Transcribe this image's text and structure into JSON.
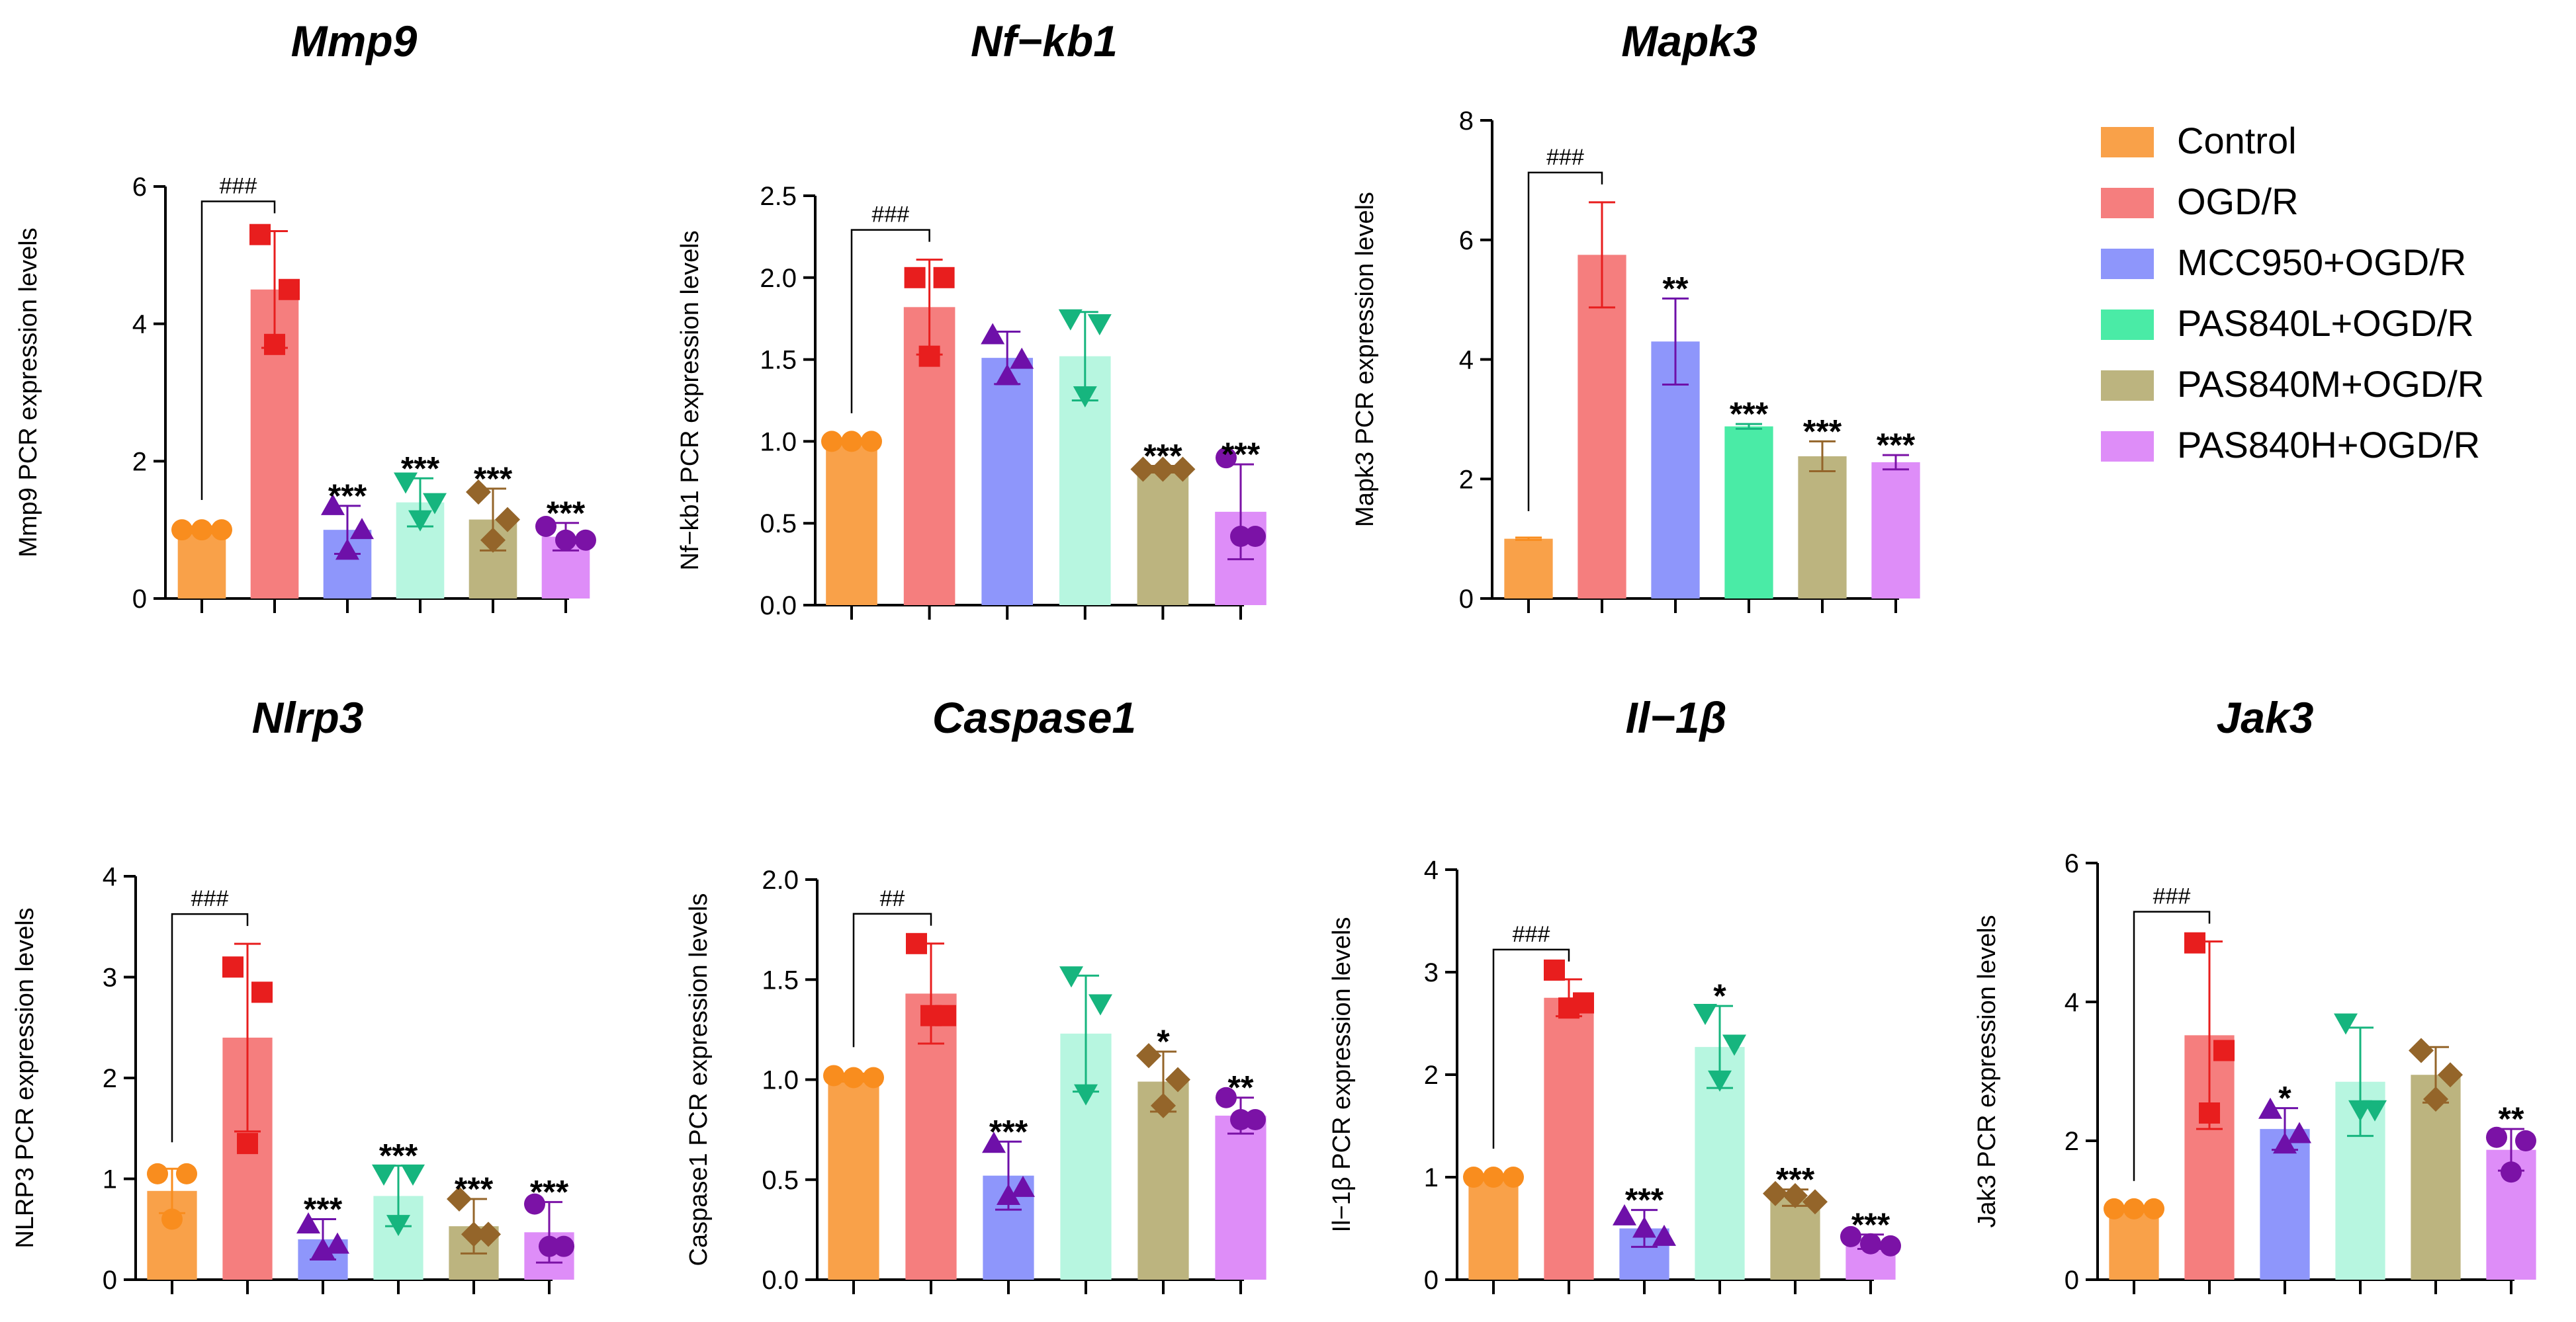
{
  "chart_data": [
    {
      "type": "bar",
      "title": "Mmp9",
      "ylabel": "Mmp9  PCR expression levels",
      "ylim": [
        0,
        6
      ],
      "yticks": [
        "0",
        "2",
        "4",
        "6"
      ],
      "groups": [
        "Control",
        "OGD/R",
        "MCC950+OGD/R",
        "PAS840L+OGD/R",
        "PAS840M+OGD/R",
        "PAS840H+OGD/R"
      ],
      "values": [
        1.0,
        4.5,
        1.0,
        1.4,
        1.15,
        0.9
      ],
      "sd": [
        0.05,
        0.85,
        0.35,
        0.35,
        0.45,
        0.2
      ],
      "points": [
        [
          1.0,
          1.0,
          1.0
        ],
        [
          5.3,
          4.5,
          3.7
        ],
        [
          1.35,
          1.0,
          0.7
        ],
        [
          1.7,
          1.4,
          1.15
        ],
        [
          1.55,
          1.15,
          0.85
        ],
        [
          1.05,
          0.85,
          0.85
        ]
      ],
      "significance": [
        "",
        "",
        "***",
        "***",
        "***",
        "***"
      ],
      "bracket": "###"
    },
    {
      "type": "bar",
      "title": "Nf−kb1",
      "ylabel": "Nf−kb1  PCR expression levels",
      "ylim": [
        0,
        2.5
      ],
      "yticks": [
        "0.0",
        "0.5",
        "1.0",
        "1.5",
        "2.0",
        "2.5"
      ],
      "groups": [
        "Control",
        "OGD/R",
        "MCC950+OGD/R",
        "PAS840L+OGD/R",
        "PAS840M+OGD/R",
        "PAS840H+OGD/R"
      ],
      "values": [
        1.0,
        1.82,
        1.51,
        1.52,
        0.83,
        0.57
      ],
      "sd": [
        0.01,
        0.29,
        0.16,
        0.27,
        0.02,
        0.29
      ],
      "points": [
        [
          1.0,
          1.0,
          1.0
        ],
        [
          2.0,
          2.0,
          1.52
        ],
        [
          1.65,
          1.5,
          1.4
        ],
        [
          1.75,
          1.72,
          1.28
        ],
        [
          0.83,
          0.83,
          0.83
        ],
        [
          0.9,
          0.42,
          0.42
        ]
      ],
      "significance": [
        "",
        "",
        "",
        "",
        "***",
        "***"
      ],
      "bracket": "###"
    },
    {
      "type": "bar",
      "title": "Mapk3",
      "ylabel": "Mapk3  PCR expression levels",
      "ylim": [
        0,
        8
      ],
      "yticks": [
        "0",
        "2",
        "4",
        "6",
        "8"
      ],
      "groups": [
        "Control",
        "OGD/R",
        "MCC950+OGD/R",
        "PAS840L+OGD/R",
        "PAS840M+OGD/R",
        "PAS840H+OGD/R"
      ],
      "values": [
        1.0,
        5.75,
        4.3,
        2.88,
        2.38,
        2.28
      ],
      "sd": [
        0.02,
        0.88,
        0.72,
        0.04,
        0.25,
        0.12
      ],
      "points": [],
      "significance": [
        "",
        "",
        "**",
        "***",
        "***",
        "***"
      ],
      "bracket": "###"
    },
    {
      "type": "bar",
      "title": "Nlrp3",
      "ylabel": "NLRP3  PCR expression levels",
      "ylim": [
        0,
        4
      ],
      "yticks": [
        "0",
        "1",
        "2",
        "3",
        "4"
      ],
      "groups": [
        "Control",
        "OGD/R",
        "MCC950+OGD/R",
        "PAS840L+OGD/R",
        "PAS840M+OGD/R",
        "PAS840H+OGD/R"
      ],
      "values": [
        0.88,
        2.4,
        0.4,
        0.83,
        0.53,
        0.47
      ],
      "sd": [
        0.22,
        0.93,
        0.2,
        0.3,
        0.27,
        0.3
      ],
      "points": [
        [
          1.05,
          1.05,
          0.6
        ],
        [
          3.1,
          2.85,
          1.35
        ],
        [
          0.55,
          0.35,
          0.3
        ],
        [
          1.05,
          1.05,
          0.55
        ],
        [
          0.8,
          0.45,
          0.45
        ],
        [
          0.75,
          0.33,
          0.33
        ]
      ],
      "significance": [
        "",
        "",
        "***",
        "***",
        "***",
        "***"
      ],
      "bracket": "###"
    },
    {
      "type": "bar",
      "title": "Caspase1",
      "ylabel": "Caspase1  PCR expression levels",
      "ylim": [
        0,
        2.0
      ],
      "yticks": [
        "0.0",
        "0.5",
        "1.0",
        "1.5",
        "2.0"
      ],
      "groups": [
        "Control",
        "OGD/R",
        "MCC950+OGD/R",
        "PAS840L+OGD/R",
        "PAS840M+OGD/R",
        "PAS840H+OGD/R"
      ],
      "values": [
        1.01,
        1.43,
        0.52,
        1.23,
        0.99,
        0.82
      ],
      "sd": [
        0.02,
        0.25,
        0.17,
        0.29,
        0.15,
        0.09
      ],
      "points": [
        [
          1.02,
          1.01,
          1.01
        ],
        [
          1.68,
          1.32,
          1.32
        ],
        [
          0.68,
          0.46,
          0.42
        ],
        [
          1.52,
          1.38,
          0.93
        ],
        [
          1.12,
          1.0,
          0.87
        ],
        [
          0.91,
          0.8,
          0.8
        ]
      ],
      "significance": [
        "",
        "",
        "***",
        "",
        "*",
        "**"
      ],
      "bracket": "##"
    },
    {
      "type": "bar",
      "title": "Il−1β",
      "ylabel": "Il−1β  PCR expression levels",
      "ylim": [
        0,
        4
      ],
      "yticks": [
        "0",
        "1",
        "2",
        "3",
        "4"
      ],
      "groups": [
        "Control",
        "OGD/R",
        "MCC950+OGD/R",
        "PAS840L+OGD/R",
        "PAS840M+OGD/R",
        "PAS840H+OGD/R"
      ],
      "values": [
        1.0,
        2.75,
        0.5,
        2.27,
        0.8,
        0.37
      ],
      "sd": [
        0.02,
        0.18,
        0.18,
        0.4,
        0.08,
        0.07
      ],
      "points": [
        [
          1.0,
          1.0,
          1.0
        ],
        [
          3.02,
          2.7,
          2.65
        ],
        [
          0.62,
          0.5,
          0.42
        ],
        [
          2.6,
          2.3,
          1.95
        ],
        [
          0.84,
          0.82,
          0.76
        ],
        [
          0.42,
          0.35,
          0.33
        ]
      ],
      "significance": [
        "",
        "",
        "***",
        "*",
        "***",
        "***"
      ],
      "bracket": "###"
    },
    {
      "type": "bar",
      "title": "Jak3",
      "ylabel": "Jak3  PCR expression levels",
      "ylim": [
        0,
        6
      ],
      "yticks": [
        "0",
        "2",
        "4",
        "6"
      ],
      "groups": [
        "Control",
        "OGD/R",
        "MCC950+OGD/R",
        "PAS840L+OGD/R",
        "PAS840M+OGD/R",
        "PAS840H+OGD/R"
      ],
      "values": [
        1.02,
        3.52,
        2.17,
        2.85,
        2.95,
        1.87
      ],
      "sd": [
        0.02,
        1.35,
        0.3,
        0.78,
        0.4,
        0.3
      ],
      "points": [
        [
          1.02,
          1.02,
          1.02
        ],
        [
          4.85,
          3.3,
          2.4
        ],
        [
          2.45,
          2.1,
          1.95
        ],
        [
          3.7,
          2.45,
          2.45
        ],
        [
          3.3,
          2.95,
          2.6
        ],
        [
          2.05,
          2.0,
          1.55
        ]
      ],
      "significance": [
        "",
        "",
        "*",
        "",
        "",
        "**"
      ],
      "bracket": "###"
    }
  ],
  "legend": [
    {
      "label": "Control",
      "color": "#F9A149"
    },
    {
      "label": "OGD/R",
      "color": "#F57E7E"
    },
    {
      "label": "MCC950+OGD/R",
      "color": "#8E96FB"
    },
    {
      "label": "PAS840L+OGD/R",
      "color": "#4AEBA6"
    },
    {
      "label": "PAS840M+OGD/R",
      "color": "#BCB47F"
    },
    {
      "label": "PAS840H+OGD/R",
      "color": "#DE8DF8"
    }
  ],
  "bar_colors": [
    "#F9A149",
    "#F57E7E",
    "#8E96FB",
    "#B7F6E0",
    "#BCB47F",
    "#DE8DF8"
  ],
  "bar_colors_mapk3": [
    "#F9A149",
    "#F57E7E",
    "#8E96FB",
    "#4AEBA6",
    "#BCB47F",
    "#DE8DF8"
  ],
  "marker_colors": [
    "#F98D1E",
    "#E81E1E",
    "#6E10A9",
    "#16B57E",
    "#94652A",
    "#7B12A6"
  ],
  "marker_shapes": [
    "circle",
    "square",
    "triangle-up",
    "triangle-down",
    "diamond",
    "circle"
  ]
}
